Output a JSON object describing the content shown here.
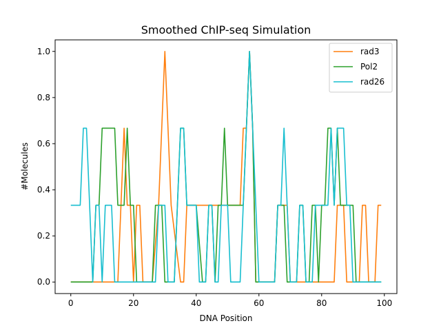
{
  "chart_data": {
    "type": "line",
    "title": "Smoothed ChIP-seq Simulation",
    "xlabel": "DNA Position",
    "ylabel": "#Molecules",
    "xlim": [
      -5,
      104
    ],
    "ylim": [
      -0.05,
      1.05
    ],
    "xticks": [
      0,
      20,
      40,
      60,
      80,
      100
    ],
    "yticks": [
      0.0,
      0.2,
      0.4,
      0.6,
      0.8,
      1.0
    ],
    "xtick_labels": [
      "0",
      "20",
      "40",
      "60",
      "80",
      "100"
    ],
    "ytick_labels": [
      "0.0",
      "0.2",
      "0.4",
      "0.6",
      "0.8",
      "1.0"
    ],
    "grid": false,
    "legend": "top-right",
    "series": [
      {
        "name": "rad3",
        "color": "#ff7f0e",
        "x": [
          0,
          15,
          16,
          17,
          18,
          19,
          20,
          21,
          22,
          23,
          24,
          26,
          28,
          29,
          30,
          31,
          32,
          35,
          36,
          37,
          38,
          54,
          55,
          56,
          57,
          58,
          59,
          65,
          66,
          67,
          68,
          69,
          70,
          84,
          85,
          86,
          87,
          88,
          89,
          92,
          93,
          94,
          95,
          96,
          97,
          98,
          99
        ],
        "y": [
          0,
          0,
          0.333,
          0.667,
          0.333,
          0.333,
          0,
          0.333,
          0.333,
          0,
          0,
          0,
          0.333,
          0.667,
          1.0,
          0.667,
          0.333,
          0,
          0,
          0.333,
          0.333,
          0.333,
          0.667,
          0.667,
          1.0,
          0.667,
          0,
          0,
          0.333,
          0.333,
          0.333,
          0.333,
          0,
          0,
          0.333,
          0.333,
          0.333,
          0,
          0,
          0,
          0.333,
          0.333,
          0,
          0,
          0,
          0.333,
          0.333
        ]
      },
      {
        "name": "Pol2",
        "color": "#2ca02c",
        "x": [
          0,
          7,
          8,
          9,
          10,
          12,
          13,
          14,
          15,
          16,
          17,
          18,
          19,
          20,
          21,
          26,
          27,
          28,
          29,
          30,
          33,
          34,
          35,
          36,
          37,
          38,
          39,
          40,
          42,
          43,
          44,
          45,
          46,
          47,
          48,
          49,
          50,
          51,
          52,
          53,
          54,
          55,
          56,
          57,
          58,
          59,
          65,
          66,
          67,
          68,
          69,
          71,
          72,
          73,
          74,
          75,
          76,
          77,
          78,
          79,
          80,
          81,
          82,
          83,
          84,
          85,
          86,
          87,
          88,
          89,
          90,
          91,
          92,
          99
        ],
        "y": [
          0,
          0,
          0.333,
          0.333,
          0.667,
          0.667,
          0.667,
          0.667,
          0.333,
          0.333,
          0.333,
          0.667,
          0.333,
          0.333,
          0,
          0,
          0.333,
          0.333,
          0.333,
          0,
          0,
          0.333,
          0.667,
          0.667,
          0.333,
          0.333,
          0.333,
          0.333,
          0,
          0,
          0.333,
          0.333,
          0,
          0.333,
          0.333,
          0.667,
          0.333,
          0.333,
          0.333,
          0.333,
          0.333,
          0.333,
          0.667,
          1.0,
          0.667,
          0,
          0,
          0.333,
          0.333,
          0.333,
          0,
          0,
          0,
          0.333,
          0.333,
          0,
          0,
          0.333,
          0.333,
          0,
          0.333,
          0.333,
          0.667,
          0.667,
          0.333,
          0.667,
          0.333,
          0.333,
          0.333,
          0.333,
          0.333,
          0,
          0,
          0
        ]
      },
      {
        "name": "rad26",
        "color": "#17becf",
        "x": [
          0,
          3,
          4,
          5,
          6,
          7,
          8,
          9,
          10,
          11,
          12,
          13,
          14,
          15,
          16,
          17,
          18,
          19,
          20,
          21,
          22,
          23,
          24,
          25,
          26,
          27,
          28,
          29,
          30,
          31,
          32,
          33,
          34,
          35,
          36,
          37,
          38,
          39,
          40,
          41,
          42,
          43,
          44,
          45,
          46,
          47,
          48,
          49,
          50,
          51,
          52,
          53,
          54,
          55,
          56,
          57,
          58,
          59,
          60,
          61,
          62,
          63,
          64,
          65,
          66,
          67,
          68,
          69,
          70,
          71,
          72,
          73,
          74,
          75,
          76,
          77,
          78,
          79,
          80,
          81,
          82,
          83,
          84,
          85,
          86,
          87,
          88,
          89,
          90,
          91,
          92,
          93,
          94,
          95,
          96,
          97,
          98,
          99
        ],
        "y": [
          0.333,
          0.333,
          0.667,
          0.667,
          0.333,
          0,
          0.333,
          0.333,
          0,
          0.333,
          0.333,
          0.333,
          0,
          0,
          0,
          0,
          0,
          0,
          0,
          0,
          0,
          0,
          0,
          0,
          0,
          0,
          0.333,
          0.333,
          0.333,
          0,
          0,
          0,
          0.333,
          0.667,
          0.667,
          0.333,
          0.333,
          0.333,
          0.333,
          0,
          0,
          0,
          0.333,
          0.333,
          0,
          0,
          0.333,
          0.333,
          0.333,
          0,
          0,
          0,
          0,
          0.333,
          0.667,
          1.0,
          0.667,
          0.333,
          0,
          0,
          0,
          0,
          0,
          0,
          0.333,
          0.333,
          0.667,
          0.333,
          0,
          0,
          0,
          0.333,
          0.333,
          0,
          0,
          0,
          0.333,
          0.333,
          0.333,
          0.333,
          0.333,
          0.667,
          0.333,
          0.667,
          0.667,
          0.667,
          0.333,
          0.333,
          0,
          0,
          0,
          0,
          0,
          0,
          0,
          0,
          0,
          0
        ]
      }
    ]
  }
}
